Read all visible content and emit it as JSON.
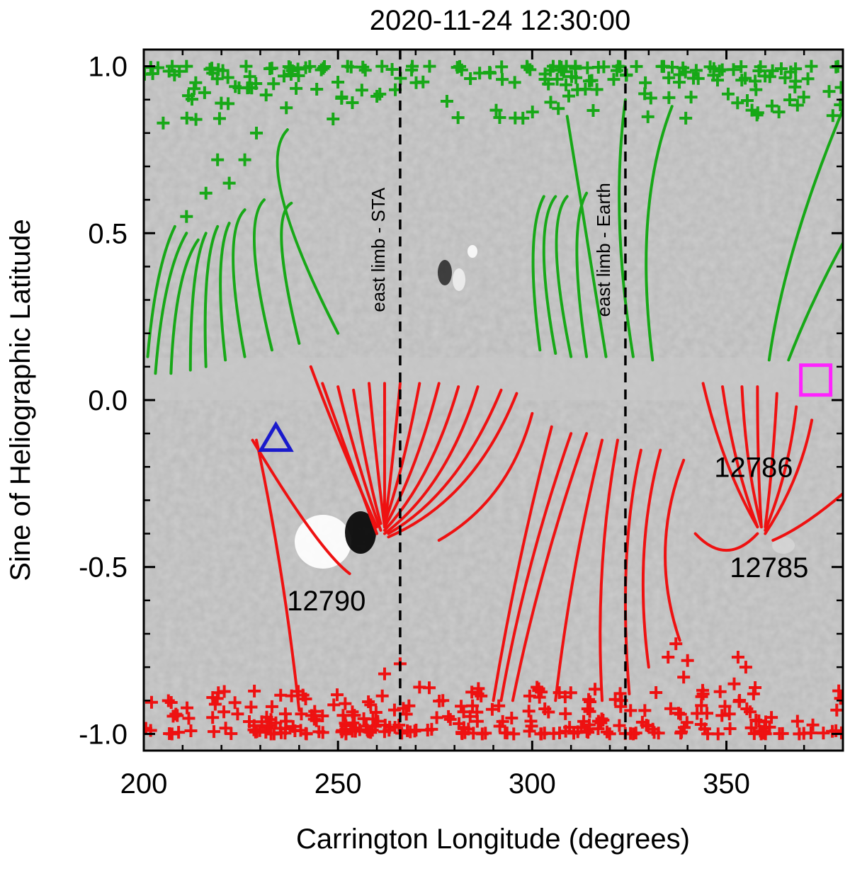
{
  "chart_data": {
    "type": "scatter",
    "title": "2020-11-24 12:30:00",
    "xlabel": "Carrington Longitude (degrees)",
    "ylabel": "Sine of Heliographic Latitude",
    "xlim": [
      200,
      380
    ],
    "ylim": [
      -1.05,
      1.05
    ],
    "x_ticks": [
      200,
      250,
      300,
      350
    ],
    "x_tick_labels": [
      "200",
      "250",
      "300",
      "350"
    ],
    "y_ticks": [
      -1.0,
      -0.5,
      0.0,
      0.5,
      1.0
    ],
    "y_tick_labels": [
      "-1.0",
      "-0.5",
      "0.0",
      "0.5",
      "1.0"
    ],
    "vlines": [
      {
        "x": 266,
        "label": "east limb - STA",
        "label_y": 0.45,
        "style": "dashed"
      },
      {
        "x": 324,
        "label": "east limb - Earth",
        "label_y": 0.45,
        "style": "dashed"
      }
    ],
    "annotations": [
      {
        "text": "12790",
        "x": 247,
        "y": -0.63
      },
      {
        "text": "12786",
        "x": 357,
        "y": -0.23
      },
      {
        "text": "12785",
        "x": 361,
        "y": -0.53
      }
    ],
    "markers": [
      {
        "type": "triangle",
        "x": 234,
        "y": -0.12,
        "color": "#1a1acc",
        "meaning": "blue triangle"
      },
      {
        "type": "square",
        "x": 373,
        "y": 0.06,
        "color": "#ff22ff",
        "meaning": "magenta square"
      }
    ],
    "series": [
      {
        "name": "positive polarity field lines",
        "color": "#17a817",
        "lines": [
          [
            [
              201,
              0.13
            ],
            [
              203,
              0.4
            ],
            [
              208,
              0.52
            ]
          ],
          [
            [
              203,
              0.08
            ],
            [
              205,
              0.38
            ],
            [
              211,
              0.5
            ]
          ],
          [
            [
              207,
              0.08
            ],
            [
              208,
              0.38
            ],
            [
              214,
              0.48
            ]
          ],
          [
            [
              212,
              0.09
            ],
            [
              212,
              0.4
            ],
            [
              216,
              0.5
            ]
          ],
          [
            [
              216,
              0.1
            ],
            [
              215,
              0.42
            ],
            [
              219,
              0.52
            ]
          ],
          [
            [
              221,
              0.12
            ],
            [
              218,
              0.43
            ],
            [
              222,
              0.53
            ]
          ],
          [
            [
              226,
              0.13
            ],
            [
              220,
              0.5
            ],
            [
              226,
              0.57
            ]
          ],
          [
            [
              233,
              0.15
            ],
            [
              225,
              0.53
            ],
            [
              231,
              0.6
            ]
          ],
          [
            [
              240,
              0.17
            ],
            [
              232,
              0.55
            ],
            [
              238,
              0.59
            ]
          ],
          [
            [
              250,
              0.2
            ],
            [
              228,
              0.7
            ],
            [
              237,
              0.81
            ]
          ],
          [
            [
              302,
              0.15
            ],
            [
              298,
              0.5
            ],
            [
              303,
              0.61
            ]
          ],
          [
            [
              306,
              0.14
            ],
            [
              300,
              0.52
            ],
            [
              306,
              0.61
            ]
          ],
          [
            [
              310,
              0.13
            ],
            [
              303,
              0.53
            ],
            [
              309,
              0.61
            ]
          ],
          [
            [
              314,
              0.13
            ],
            [
              309,
              0.52
            ],
            [
              314,
              0.62
            ]
          ],
          [
            [
              319,
              0.13
            ],
            [
              313,
              0.56
            ],
            [
              309,
              0.85
            ]
          ],
          [
            [
              326,
              0.13
            ],
            [
              320,
              0.55
            ],
            [
              324,
              0.9
            ]
          ],
          [
            [
              331,
              0.12
            ],
            [
              326,
              0.58
            ],
            [
              336,
              0.88
            ]
          ],
          [
            [
              361,
              0.12
            ],
            [
              365,
              0.45
            ],
            [
              380,
              0.87
            ]
          ],
          [
            [
              366,
              0.12
            ],
            [
              372,
              0.3
            ],
            [
              380,
              0.47
            ]
          ]
        ]
      },
      {
        "name": "negative polarity field lines",
        "color": "#ee1111",
        "lines": [
          [
            [
              229,
              -0.12
            ],
            [
              236,
              -0.5
            ],
            [
              240,
              -0.93
            ]
          ],
          [
            [
              243,
              0.1
            ],
            [
              250,
              -0.12
            ],
            [
              260,
              -0.38
            ]
          ],
          [
            [
              246,
              0.05
            ],
            [
              253,
              -0.18
            ],
            [
              260,
              -0.4
            ]
          ],
          [
            [
              250,
              0.04
            ],
            [
              255,
              -0.2
            ],
            [
              261,
              -0.39
            ]
          ],
          [
            [
              254,
              0.03
            ],
            [
              257,
              -0.2
            ],
            [
              261,
              -0.37
            ]
          ],
          [
            [
              258,
              0.05
            ],
            [
              260,
              -0.2
            ],
            [
              262,
              -0.38
            ]
          ],
          [
            [
              262,
              0.05
            ],
            [
              262,
              -0.2
            ],
            [
              262,
              -0.38
            ]
          ],
          [
            [
              266,
              0.05
            ],
            [
              264,
              -0.2
            ],
            [
              262,
              -0.38
            ]
          ],
          [
            [
              271,
              0.05
            ],
            [
              267,
              -0.2
            ],
            [
              262,
              -0.37
            ]
          ],
          [
            [
              276,
              0.05
            ],
            [
              270,
              -0.22
            ],
            [
              262,
              -0.38
            ]
          ],
          [
            [
              281,
              0.04
            ],
            [
              274,
              -0.24
            ],
            [
              262,
              -0.39
            ]
          ],
          [
            [
              286,
              0.04
            ],
            [
              278,
              -0.26
            ],
            [
              262,
              -0.4
            ]
          ],
          [
            [
              292,
              0.03
            ],
            [
              281,
              -0.28
            ],
            [
              263,
              -0.4
            ]
          ],
          [
            [
              296,
              0.02
            ],
            [
              285,
              -0.3
            ],
            [
              263,
              -0.41
            ]
          ],
          [
            [
              300,
              -0.04
            ],
            [
              294,
              -0.3
            ],
            [
              276,
              -0.42
            ]
          ],
          [
            [
              305,
              -0.08
            ],
            [
              296,
              -0.48
            ],
            [
              290,
              -0.9
            ]
          ],
          [
            [
              310,
              -0.1
            ],
            [
              298,
              -0.5
            ],
            [
              292,
              -0.9
            ]
          ],
          [
            [
              314,
              -0.1
            ],
            [
              302,
              -0.5
            ],
            [
              295,
              -0.9
            ]
          ],
          [
            [
              318,
              -0.12
            ],
            [
              310,
              -0.5
            ],
            [
              306,
              -0.9
            ]
          ],
          [
            [
              322,
              -0.12
            ],
            [
              316,
              -0.5
            ],
            [
              318,
              -0.9
            ]
          ],
          [
            [
              328,
              -0.15
            ],
            [
              322,
              -0.45
            ],
            [
              325,
              -0.88
            ]
          ],
          [
            [
              333,
              -0.15
            ],
            [
              326,
              -0.45
            ],
            [
              330,
              -0.8
            ]
          ],
          [
            [
              339,
              -0.18
            ],
            [
              330,
              -0.45
            ],
            [
              338,
              -0.72
            ]
          ],
          [
            [
              344,
              0.05
            ],
            [
              349,
              -0.2
            ],
            [
              358,
              -0.38
            ]
          ],
          [
            [
              349,
              0.04
            ],
            [
              352,
              -0.2
            ],
            [
              358,
              -0.38
            ]
          ],
          [
            [
              354,
              0.04
            ],
            [
              355,
              -0.2
            ],
            [
              359,
              -0.38
            ]
          ],
          [
            [
              358,
              0.04
            ],
            [
              358,
              -0.2
            ],
            [
              359,
              -0.38
            ]
          ],
          [
            [
              363,
              0.02
            ],
            [
              362,
              -0.2
            ],
            [
              360,
              -0.38
            ]
          ],
          [
            [
              368,
              -0.02
            ],
            [
              366,
              -0.22
            ],
            [
              360,
              -0.39
            ]
          ],
          [
            [
              372,
              -0.06
            ],
            [
              369,
              -0.24
            ],
            [
              360,
              -0.4
            ]
          ],
          [
            [
              380,
              -0.28
            ],
            [
              370,
              -0.38
            ],
            [
              362,
              -0.42
            ]
          ],
          [
            [
              342,
              -0.4
            ],
            [
              350,
              -0.5
            ],
            [
              358,
              -0.4
            ]
          ],
          [
            [
              228,
              -0.12
            ],
            [
              245,
              -0.45
            ],
            [
              253,
              -0.52
            ]
          ]
        ]
      }
    ]
  }
}
